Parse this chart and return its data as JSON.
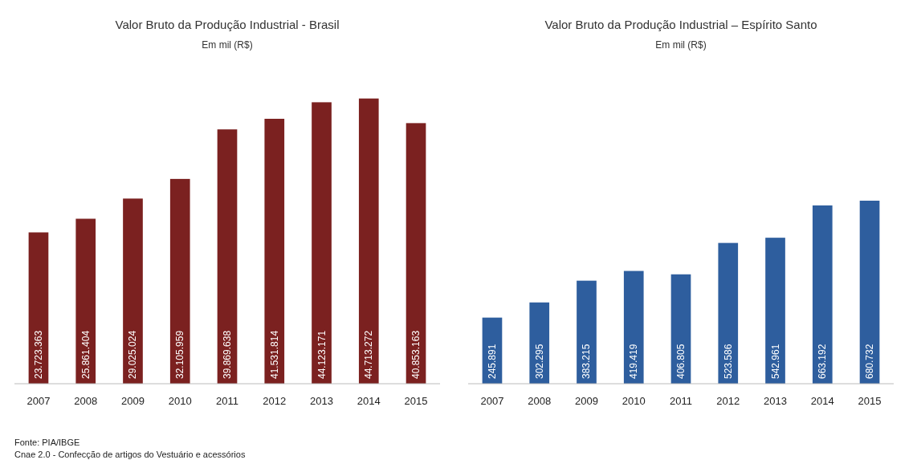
{
  "chart_data": [
    {
      "type": "bar",
      "title": "Valor Bruto da Produção Industrial - Brasil",
      "subtitle": "Em mil (R$)",
      "categories": [
        "2007",
        "2008",
        "2009",
        "2010",
        "2011",
        "2012",
        "2013",
        "2014",
        "2015"
      ],
      "values": [
        23723363,
        25861404,
        29025024,
        32105959,
        39869638,
        41531814,
        44123171,
        44713272,
        40853163
      ],
      "value_labels": [
        "23.723.363",
        "25.861.404",
        "29.025.024",
        "32.105.959",
        "39.869.638",
        "41.531.814",
        "44.123.171",
        "44.713.272",
        "40.853.163"
      ],
      "color": "#7b2120",
      "tick_labels": "x",
      "annotations": [
        "Fonte: PIA/IBGE",
        "Cnae 2.0 - Confecção de artigos do Vestuário e acessórios"
      ]
    },
    {
      "type": "bar",
      "title": "Valor Bruto da Produção Industrial – Espírito Santo",
      "subtitle": "Em mil (R$)",
      "categories": [
        "2007",
        "2008",
        "2009",
        "2010",
        "2011",
        "2012",
        "2013",
        "2014",
        "2015"
      ],
      "values": [
        245891,
        302295,
        383215,
        419419,
        406805,
        523586,
        542961,
        663192,
        680732
      ],
      "value_labels": [
        "245.891",
        "302.295",
        "383.215",
        "419.419",
        "406.805",
        "523.586",
        "542.961",
        "663.192",
        "680.732"
      ],
      "color": "#2e5e9e",
      "tick_labels": "x"
    }
  ]
}
